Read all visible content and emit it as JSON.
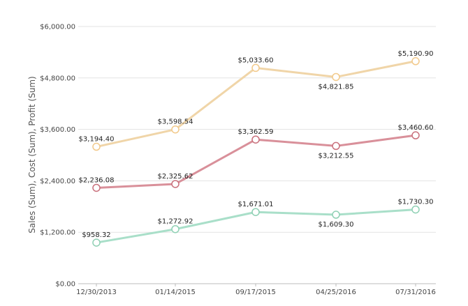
{
  "chart_data": {
    "type": "line",
    "title": "",
    "xlabel": "",
    "ylabel": "Sales (Sum), Cost (Sum), Profit (Sum)",
    "categories": [
      "12/30/2013",
      "01/14/2015",
      "09/17/2015",
      "04/25/2016",
      "07/31/2016"
    ],
    "y_ticks": [
      "$0.00",
      "$1,200.00",
      "$2,400.00",
      "$3,600.00",
      "$4,800.00",
      "$6,000.00"
    ],
    "ylim": [
      0,
      6000
    ],
    "grid": true,
    "series": [
      {
        "color": "#f0d5a8",
        "marker_color": "#f2c98a",
        "values": [
          3194.4,
          3598.54,
          5033.6,
          4821.85,
          5190.9
        ],
        "labels": [
          "$3,194.40",
          "$3,598.54",
          "$5,033.60",
          "$4,821.85",
          "$5,190.90"
        ],
        "label_position": [
          "above",
          "above",
          "above",
          "below",
          "above"
        ]
      },
      {
        "color": "#d9909a",
        "marker_color": "#c9707c",
        "values": [
          2236.08,
          2325.62,
          3362.59,
          3212.55,
          3460.6
        ],
        "labels": [
          "$2,236.08",
          "$2,325.62",
          "$3,362.59",
          "$3,212.55",
          "$3,460.60"
        ],
        "label_position": [
          "above",
          "above",
          "above",
          "below",
          "above"
        ]
      },
      {
        "color": "#a9dfc9",
        "marker_color": "#8fd0b4",
        "values": [
          958.32,
          1272.92,
          1671.01,
          1609.3,
          1730.3
        ],
        "labels": [
          "$958.32",
          "$1,272.92",
          "$1,671.01",
          "$1,609.30",
          "$1,730.30"
        ],
        "label_position": [
          "above",
          "above",
          "above",
          "below",
          "above"
        ]
      }
    ]
  }
}
